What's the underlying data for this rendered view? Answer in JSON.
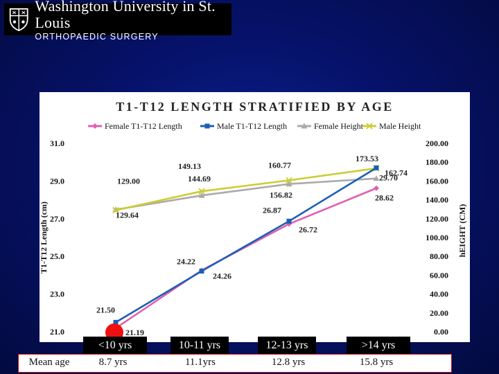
{
  "logo": {
    "line1": "Washington University in St. Louis",
    "line2": "ORTHOPAEDIC SURGERY",
    "icon": "university-shield-icon"
  },
  "chart_data": {
    "type": "line",
    "title": "T1-T12 LENGTH STRATIFIED BY AGE",
    "categories": [
      "<10 yrs",
      "10-11 yrs",
      "12-13 yrs",
      ">14 yrs"
    ],
    "ylabel": "T1-T12 Length (cm)",
    "y2label": "hEIGHT (CM)",
    "ylim": [
      21.0,
      31.0
    ],
    "yticks": [
      "31.0",
      "29.0",
      "27.0",
      "25.0",
      "23.0",
      "21.0"
    ],
    "y2lim": [
      0,
      200
    ],
    "y2ticks": [
      "200.00",
      "180.00",
      "160.00",
      "140.00",
      "120.00",
      "100.00",
      "80.00",
      "60.00",
      "40.00",
      "20.00",
      "0.00"
    ],
    "legend_position": "top",
    "series": [
      {
        "name": "Female T1-T12 Length",
        "axis": "left",
        "color": "#e060b0",
        "marker": "diamond",
        "values": [
          21.19,
          24.26,
          26.72,
          28.62
        ],
        "labels": [
          "21.19",
          "24.26",
          "26.72",
          "28.62"
        ]
      },
      {
        "name": "Male T1-T12 Length",
        "axis": "left",
        "color": "#1a5fb4",
        "marker": "square",
        "values": [
          21.5,
          24.22,
          26.87,
          29.7
        ],
        "labels": [
          "21.50",
          "24.22",
          "26.87",
          "29.70"
        ]
      },
      {
        "name": "Female Height",
        "axis": "right",
        "color": "#aaaaaa",
        "marker": "triangle",
        "values": [
          129.64,
          144.69,
          156.82,
          162.74
        ],
        "labels": [
          "129.64",
          "144.69",
          "156.82",
          "162.74"
        ]
      },
      {
        "name": "Male Height",
        "axis": "right",
        "color": "#cccc33",
        "marker": "x",
        "values": [
          129.0,
          149.13,
          160.77,
          173.53
        ],
        "labels": [
          "129.00",
          "149.13",
          "160.77",
          "173.53"
        ]
      }
    ]
  },
  "mean_age": {
    "label": "Mean age",
    "values": [
      "8.7 yrs",
      "11.1yrs",
      "12.8 yrs",
      "15.8 yrs"
    ]
  },
  "colors": {
    "accent_marker": "#ee1111"
  }
}
